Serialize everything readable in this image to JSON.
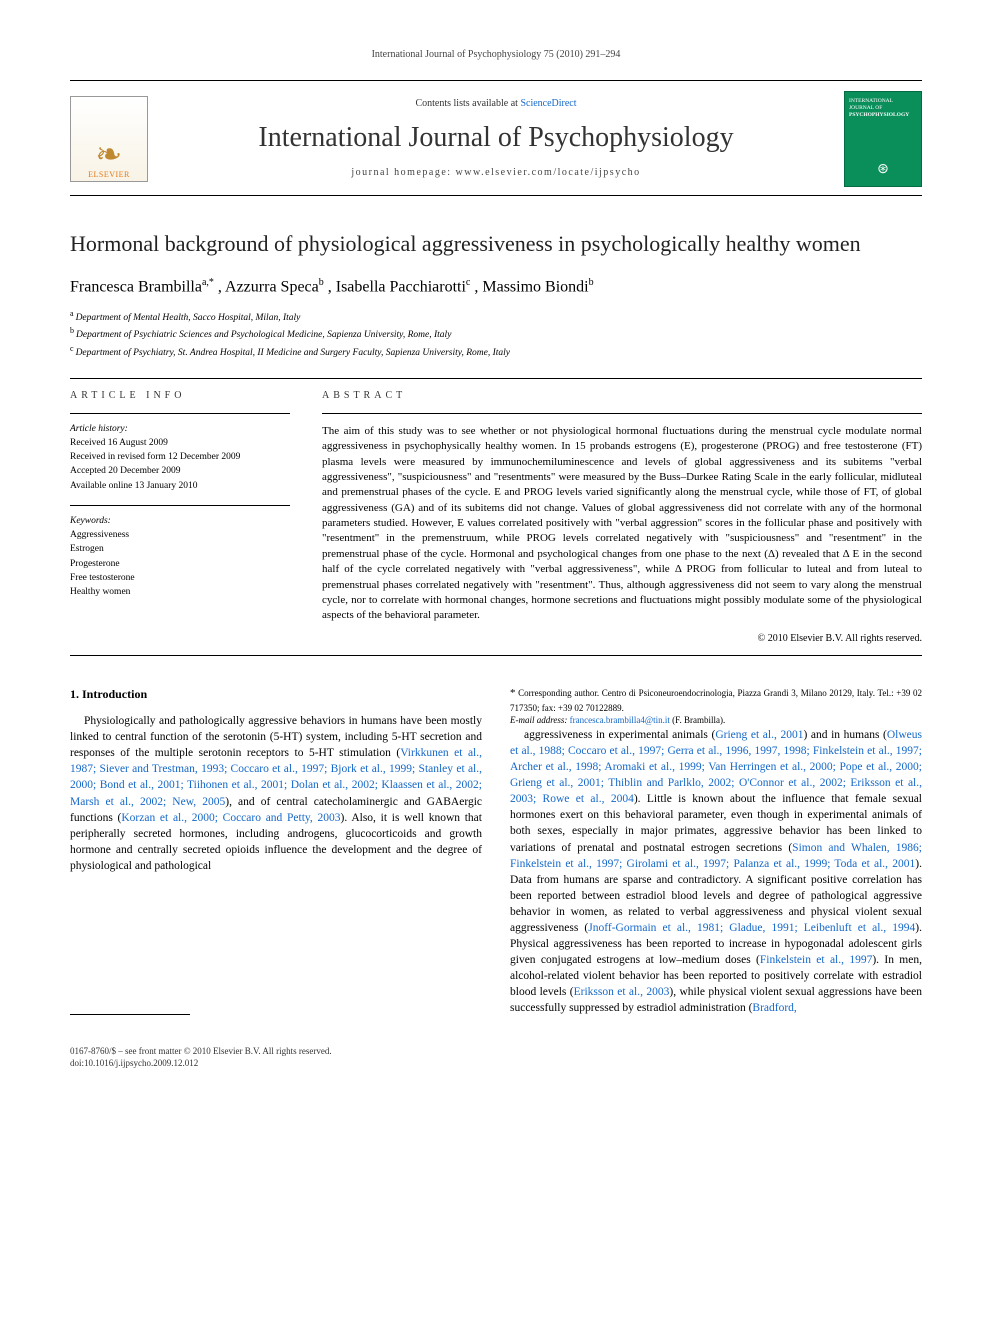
{
  "running_head": "International Journal of Psychophysiology 75 (2010) 291–294",
  "masthead": {
    "contents_line_prefix": "Contents lists available at ",
    "contents_link": "ScienceDirect",
    "journal_name": "International Journal of Psychophysiology",
    "homepage_prefix": "journal homepage: ",
    "homepage": "www.elsevier.com/locate/ijpsycho",
    "elsevier_label": "ELSEVIER",
    "cover_top": "INTERNATIONAL JOURNAL OF",
    "cover_title": "PSYCHOPHYSIOLOGY"
  },
  "title": "Hormonal background of physiological aggressiveness in psychologically healthy women",
  "authors_html_parts": {
    "a1_name": "Francesca Brambilla",
    "a1_sup": "a,",
    "a1_star": "*",
    "a2_name": ", Azzurra Speca",
    "a2_sup": "b",
    "a3_name": ", Isabella Pacchiarotti",
    "a3_sup": "c",
    "a4_name": ", Massimo Biondi",
    "a4_sup": "b"
  },
  "affiliations": [
    {
      "sup": "a",
      "text": "Department of Mental Health, Sacco Hospital, Milan, Italy"
    },
    {
      "sup": "b",
      "text": "Department of Psychiatric Sciences and Psychological Medicine, Sapienza University, Rome, Italy"
    },
    {
      "sup": "c",
      "text": "Department of Psychiatry, St. Andrea Hospital, II Medicine and Surgery Faculty, Sapienza University, Rome, Italy"
    }
  ],
  "info_label": "ARTICLE INFO",
  "abstract_label": "ABSTRACT",
  "history_heading": "Article history:",
  "history": [
    "Received 16 August 2009",
    "Received in revised form 12 December 2009",
    "Accepted 20 December 2009",
    "Available online 13 January 2010"
  ],
  "keywords_heading": "Keywords:",
  "keywords": [
    "Aggressiveness",
    "Estrogen",
    "Progesterone",
    "Free testosterone",
    "Healthy women"
  ],
  "abstract": "The aim of this study was to see whether or not physiological hormonal fluctuations during the menstrual cycle modulate normal aggressiveness in psychophysically healthy women. In 15 probands estrogens (E), progesterone (PROG) and free testosterone (FT) plasma levels were measured by immunochemiluminescence and levels of global aggressiveness and its subitems \"verbal aggressiveness\", \"suspiciousness\" and \"resentments\" were measured by the Buss–Durkee Rating Scale in the early follicular, midluteal and premenstrual phases of the cycle. E and PROG levels varied significantly along the menstrual cycle, while those of FT, of global aggressiveness (GA) and of its subitems did not change. Values of global aggressiveness did not correlate with any of the hormonal parameters studied. However, E values correlated positively with \"verbal aggression\" scores in the follicular phase and positively with \"resentment\" in the premenstruum, while PROG levels correlated negatively with \"suspiciousness\" and \"resentment\" in the premenstrual phase of the cycle. Hormonal and psychological changes from one phase to the next (Δ) revealed that Δ E in the second half of the cycle correlated negatively with \"verbal aggressiveness\", while Δ PROG from follicular to luteal and from luteal to premenstrual phases correlated negatively with \"resentment\". Thus, although aggressiveness did not seem to vary along the menstrual cycle, nor to correlate with hormonal changes, hormone secretions and fluctuations might possibly modulate some of the physiological aspects of the behavioral parameter.",
  "copyright": "© 2010 Elsevier B.V. All rights reserved.",
  "body": {
    "heading": "1. Introduction",
    "p1_a": "Physiologically and pathologically aggressive behaviors in humans have been mostly linked to central function of the serotonin (5-HT) system, including 5-HT secretion and responses of the multiple serotonin receptors to 5-HT stimulation (",
    "p1_cite1": "Virkkunen et al., 1987; Siever and Trestman, 1993; Coccaro et al., 1997; Bjork et al., 1999; Stanley et al., 2000; Bond et al., 2001; Tiihonen et al., 2001; Dolan et al., 2002; Klaassen et al., 2002; Marsh et al., 2002; New, 2005",
    "p1_b": "), and of central catecholaminergic and GABAergic functions (",
    "p1_cite2": "Korzan et al., 2000; Coccaro and Petty, 2003",
    "p1_c": "). Also, it is well known that peripherally secreted hormones, including androgens, glucocorticoids and growth hormone and centrally secreted opioids influence the development and the degree of physiological and pathological",
    "p2_a": "aggressiveness in experimental animals (",
    "p2_cite1": "Grieng et al., 2001",
    "p2_b": ") and in humans (",
    "p2_cite2": "Olweus et al., 1988; Coccaro et al., 1997; Gerra et al., 1996, 1997, 1998; Finkelstein et al., 1997; Archer et al., 1998; Aromaki et al., 1999; Van Herringen et al., 2000; Pope et al., 2000; Grieng et al., 2001; Thiblin and Parlklo, 2002; O'Connor et al., 2002; Eriksson et al., 2003; Rowe et al., 2004",
    "p2_c": "). Little is known about the influence that female sexual hormones exert on this behavioral parameter, even though in experimental animals of both sexes, especially in major primates, aggressive behavior has been linked to variations of prenatal and postnatal estrogen secretions (",
    "p2_cite3": "Simon and Whalen, 1986; Finkelstein et al., 1997; Girolami et al., 1997; Palanza et al., 1999; Toda et al., 2001",
    "p2_d": "). Data from humans are sparse and contradictory. A significant positive correlation has been reported between estradiol blood levels and degree of pathological aggressive behavior in women, as related to verbal aggressiveness and physical violent sexual aggressiveness (",
    "p2_cite4": "Jnoff-Gormain et al., 1981; Gladue, 1991; Leibenluft et al., 1994",
    "p2_e": "). Physical aggressiveness has been reported to increase in hypogonadal adolescent girls given conjugated estrogens at low–medium doses (",
    "p2_cite5": "Finkelstein et al., 1997",
    "p2_f": "). In men, alcohol-related violent behavior has been reported to positively correlate with estradiol blood levels (",
    "p2_cite6": "Eriksson et al., 2003",
    "p2_g": "), while physical violent sexual aggressions have been successfully suppressed by estradiol administration (",
    "p2_cite7": "Bradford,"
  },
  "footnotes": {
    "corresponding": "Corresponding author. Centro di Psiconeuroendocrinologia, Piazza Grandi 3, Milano 20129, Italy. Tel.: +39 02 717350; fax: +39 02 70122889.",
    "email_label": "E-mail address:",
    "email": "francesca.brambilla4@tin.it",
    "email_person": "(F. Brambilla)."
  },
  "footer": {
    "line1": "0167-8760/$ – see front matter © 2010 Elsevier B.V. All rights reserved.",
    "line2": "doi:10.1016/j.ijpsycho.2009.12.012"
  },
  "colors": {
    "link": "#1568c9",
    "elsevier_orange": "#e67817",
    "cover_green": "#0a8f5b"
  }
}
